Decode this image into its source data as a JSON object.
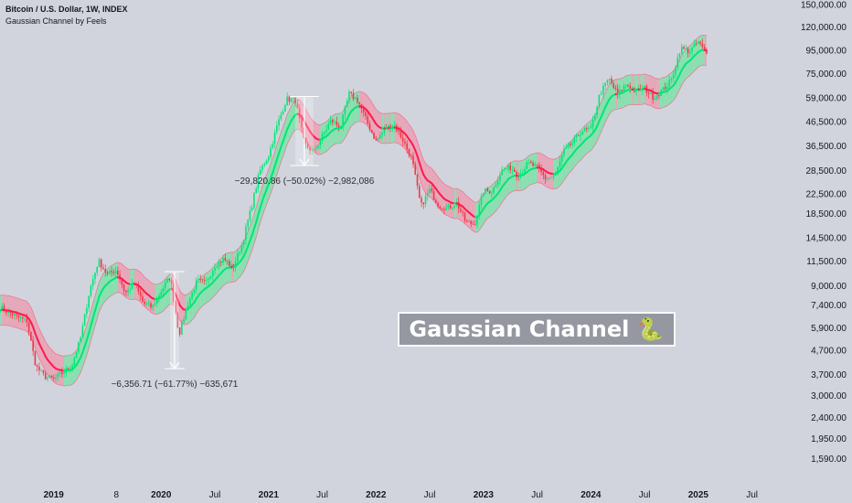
{
  "header": {
    "symbol_line": "Bitcoin / U.S. Dollar, 1W, INDEX",
    "indicator_line": "Gaussian Channel by Feels"
  },
  "overlay_label": "Gaussian Channel 🐍",
  "colors": {
    "background": "#d1d4dc",
    "up": "#00e676",
    "down": "#f23645",
    "band_up_fill": "#7ee0a8",
    "band_down_fill": "#ea9fb3",
    "mid_up": "#00e676",
    "mid_down": "#ff1a4d"
  },
  "chart_data": {
    "type": "candlestick",
    "scale": "log",
    "ylim": [
      1400,
      152000
    ],
    "xlim": [
      "2018-07",
      "2025-10"
    ],
    "y_ticks": [
      {
        "v": 150000,
        "label": "150,000.00"
      },
      {
        "v": 120000,
        "label": "120,000.00"
      },
      {
        "v": 95000,
        "label": "95,000.00"
      },
      {
        "v": 75000,
        "label": "75,000.00"
      },
      {
        "v": 59000,
        "label": "59,000.00"
      },
      {
        "v": 46500,
        "label": "46,500.00"
      },
      {
        "v": 36500,
        "label": "36,500.00"
      },
      {
        "v": 28500,
        "label": "28,500.00"
      },
      {
        "v": 22500,
        "label": "22,500.00"
      },
      {
        "v": 18500,
        "label": "18,500.00"
      },
      {
        "v": 14500,
        "label": "14,500.00"
      },
      {
        "v": 11500,
        "label": "11,500.00"
      },
      {
        "v": 9000,
        "label": "9,000.00"
      },
      {
        "v": 7400,
        "label": "7,400.00"
      },
      {
        "v": 5900,
        "label": "5,900.00"
      },
      {
        "v": 4700,
        "label": "4,700.00"
      },
      {
        "v": 3700,
        "label": "3,700.00"
      },
      {
        "v": 3000,
        "label": "3,000.00"
      },
      {
        "v": 2400,
        "label": "2,400.00"
      },
      {
        "v": 1950,
        "label": "1,950.00"
      },
      {
        "v": 1590,
        "label": "1,590.00"
      }
    ],
    "x_ticks": [
      {
        "t": "2019-01",
        "label": "2019",
        "bold": true
      },
      {
        "t": "2019-08",
        "label": "8",
        "bold": false
      },
      {
        "t": "2020-01",
        "label": "2020",
        "bold": true
      },
      {
        "t": "2020-07",
        "label": "Jul",
        "bold": false
      },
      {
        "t": "2021-01",
        "label": "2021",
        "bold": true
      },
      {
        "t": "2021-07",
        "label": "Jul",
        "bold": false
      },
      {
        "t": "2022-01",
        "label": "2022",
        "bold": true
      },
      {
        "t": "2022-07",
        "label": "Jul",
        "bold": false
      },
      {
        "t": "2023-01",
        "label": "2023",
        "bold": true
      },
      {
        "t": "2023-07",
        "label": "Jul",
        "bold": false
      },
      {
        "t": "2024-01",
        "label": "2024",
        "bold": true
      },
      {
        "t": "2024-07",
        "label": "Jul",
        "bold": false
      },
      {
        "t": "2025-01",
        "label": "2025",
        "bold": true
      },
      {
        "t": "2025-07",
        "label": "Jul",
        "bold": false
      }
    ],
    "price_path": [
      [
        "2018-07",
        7200
      ],
      [
        "2018-09",
        6500
      ],
      [
        "2018-10",
        6300
      ],
      [
        "2018-11",
        4000
      ],
      [
        "2018-12",
        3600
      ],
      [
        "2019-01",
        3500
      ],
      [
        "2019-03",
        4000
      ],
      [
        "2019-04",
        5300
      ],
      [
        "2019-05",
        8500
      ],
      [
        "2019-06",
        11500
      ],
      [
        "2019-07",
        10000
      ],
      [
        "2019-08",
        10500
      ],
      [
        "2019-09",
        8300
      ],
      [
        "2019-10",
        9200
      ],
      [
        "2019-11",
        7500
      ],
      [
        "2019-12",
        7200
      ],
      [
        "2020-01",
        8500
      ],
      [
        "2020-02",
        9800
      ],
      [
        "2020-03",
        5500
      ],
      [
        "2020-04",
        7500
      ],
      [
        "2020-05",
        9400
      ],
      [
        "2020-06",
        9200
      ],
      [
        "2020-07",
        11000
      ],
      [
        "2020-08",
        11700
      ],
      [
        "2020-09",
        10700
      ],
      [
        "2020-10",
        13500
      ],
      [
        "2020-11",
        19000
      ],
      [
        "2020-12",
        28000
      ],
      [
        "2021-01",
        33000
      ],
      [
        "2021-02",
        45000
      ],
      [
        "2021-03",
        58000
      ],
      [
        "2021-04",
        57000
      ],
      [
        "2021-05",
        37000
      ],
      [
        "2021-06",
        34000
      ],
      [
        "2021-07",
        40000
      ],
      [
        "2021-08",
        47000
      ],
      [
        "2021-09",
        43500
      ],
      [
        "2021-10",
        61000
      ],
      [
        "2021-11",
        57000
      ],
      [
        "2021-12",
        46000
      ],
      [
        "2022-01",
        38000
      ],
      [
        "2022-02",
        43000
      ],
      [
        "2022-03",
        45000
      ],
      [
        "2022-04",
        38500
      ],
      [
        "2022-05",
        31800
      ],
      [
        "2022-06",
        19800
      ],
      [
        "2022-07",
        23300
      ],
      [
        "2022-08",
        20000
      ],
      [
        "2022-09",
        19400
      ],
      [
        "2022-10",
        20500
      ],
      [
        "2022-11",
        17000
      ],
      [
        "2022-12",
        16500
      ],
      [
        "2023-01",
        23100
      ],
      [
        "2023-02",
        23100
      ],
      [
        "2023-03",
        28400
      ],
      [
        "2023-04",
        29200
      ],
      [
        "2023-05",
        27200
      ],
      [
        "2023-06",
        30500
      ],
      [
        "2023-07",
        29200
      ],
      [
        "2023-08",
        26000
      ],
      [
        "2023-09",
        27000
      ],
      [
        "2023-10",
        34500
      ],
      [
        "2023-11",
        37700
      ],
      [
        "2023-12",
        42300
      ],
      [
        "2024-01",
        42600
      ],
      [
        "2024-02",
        61000
      ],
      [
        "2024-03",
        71000
      ],
      [
        "2024-04",
        60600
      ],
      [
        "2024-05",
        67500
      ],
      [
        "2024-06",
        62700
      ],
      [
        "2024-07",
        64600
      ],
      [
        "2024-08",
        58900
      ],
      [
        "2024-09",
        63300
      ],
      [
        "2024-10",
        70200
      ],
      [
        "2024-11",
        96400
      ],
      [
        "2024-12",
        93400
      ],
      [
        "2025-01",
        102400
      ],
      [
        "2025-02",
        90000
      ]
    ],
    "annotations": [
      {
        "text": "−6,356.71 (−61.77%) −635,671",
        "from": [
          "2020-02",
          10300
        ],
        "to": [
          "2020-03",
          3900
        ]
      },
      {
        "text": "−29,820.86 (−50.02%) −2,982,086",
        "from": [
          "2021-04",
          59500
        ],
        "to": [
          "2021-06",
          29800
        ]
      }
    ]
  }
}
